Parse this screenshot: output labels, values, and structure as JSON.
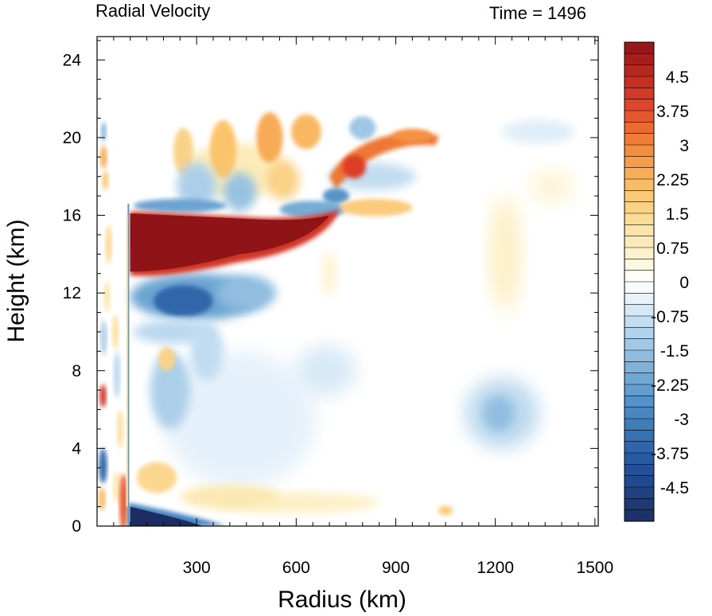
{
  "chart_data": {
    "type": "heatmap",
    "title_left": "Radial Velocity",
    "title_right": "Time = 1496",
    "xlabel": "Radius (km)",
    "ylabel": "Height (km)",
    "xlim": [
      0,
      1510
    ],
    "ylim": [
      0,
      25.2
    ],
    "xticks": [
      300,
      600,
      900,
      1200,
      1500
    ],
    "xtick_labels": [
      "300",
      "600",
      "900",
      "1200",
      "1500"
    ],
    "yticks": [
      0,
      4,
      8,
      12,
      16,
      20,
      24
    ],
    "ytick_labels": [
      "0",
      "4",
      "8",
      "12",
      "16",
      "20",
      "24"
    ],
    "colorbar": {
      "levels": [
        -5.25,
        -5,
        -4.75,
        -4.5,
        -4.25,
        -4,
        -3.75,
        -3.5,
        -3.25,
        -3,
        -2.75,
        -2.5,
        -2.25,
        -2,
        -1.75,
        -1.5,
        -1.25,
        -1,
        -0.75,
        -0.5,
        -0.25,
        0,
        0.25,
        0.5,
        0.75,
        1,
        1.25,
        1.5,
        1.75,
        2,
        2.25,
        2.5,
        2.75,
        3,
        3.25,
        3.5,
        3.75,
        4,
        4.25,
        4.5,
        4.75,
        5,
        5.25
      ],
      "tick_labels": [
        "4.5",
        "3.75",
        "3",
        "2.25",
        "1.5",
        "0.75",
        "0",
        "-0.75",
        "-1.5",
        "-2.25",
        "-3",
        "-3.75",
        "-4.5"
      ],
      "tick_values": [
        4.5,
        3.75,
        3,
        2.25,
        1.5,
        0.75,
        0,
        -0.75,
        -1.5,
        -2.25,
        -3,
        -3.75,
        -4.5
      ]
    },
    "features": [
      {
        "name": "upper-level outflow jet",
        "r": [
          100,
          720
        ],
        "z": [
          13.0,
          16.2
        ],
        "value": 5.5
      },
      {
        "name": "mid-level inflow",
        "r": [
          100,
          560
        ],
        "z": [
          10.8,
          12.8
        ],
        "value": -3.8
      },
      {
        "name": "low-level inflow",
        "r": [
          100,
          370
        ],
        "z": [
          0,
          1.2
        ],
        "value": -5.0
      },
      {
        "name": "upper outflow arm",
        "r": [
          720,
          1050
        ],
        "z": [
          17.5,
          20.5
        ],
        "value": 3.4
      },
      {
        "name": "upper outflow band",
        "r": [
          600,
          1080
        ],
        "z": [
          19.8,
          20.6
        ],
        "value": 2.6
      },
      {
        "name": "inner eye outflow",
        "r": [
          0,
          40
        ],
        "z": [
          6.2,
          7.2
        ],
        "value": 4.2
      },
      {
        "name": "inner eye inflow",
        "r": [
          0,
          40
        ],
        "z": [
          2.4,
          3.8
        ],
        "value": -3.5
      },
      {
        "name": "weak mid inflow",
        "r": [
          1100,
          1330
        ],
        "z": [
          4.5,
          7.5
        ],
        "value": -1.2
      }
    ]
  }
}
